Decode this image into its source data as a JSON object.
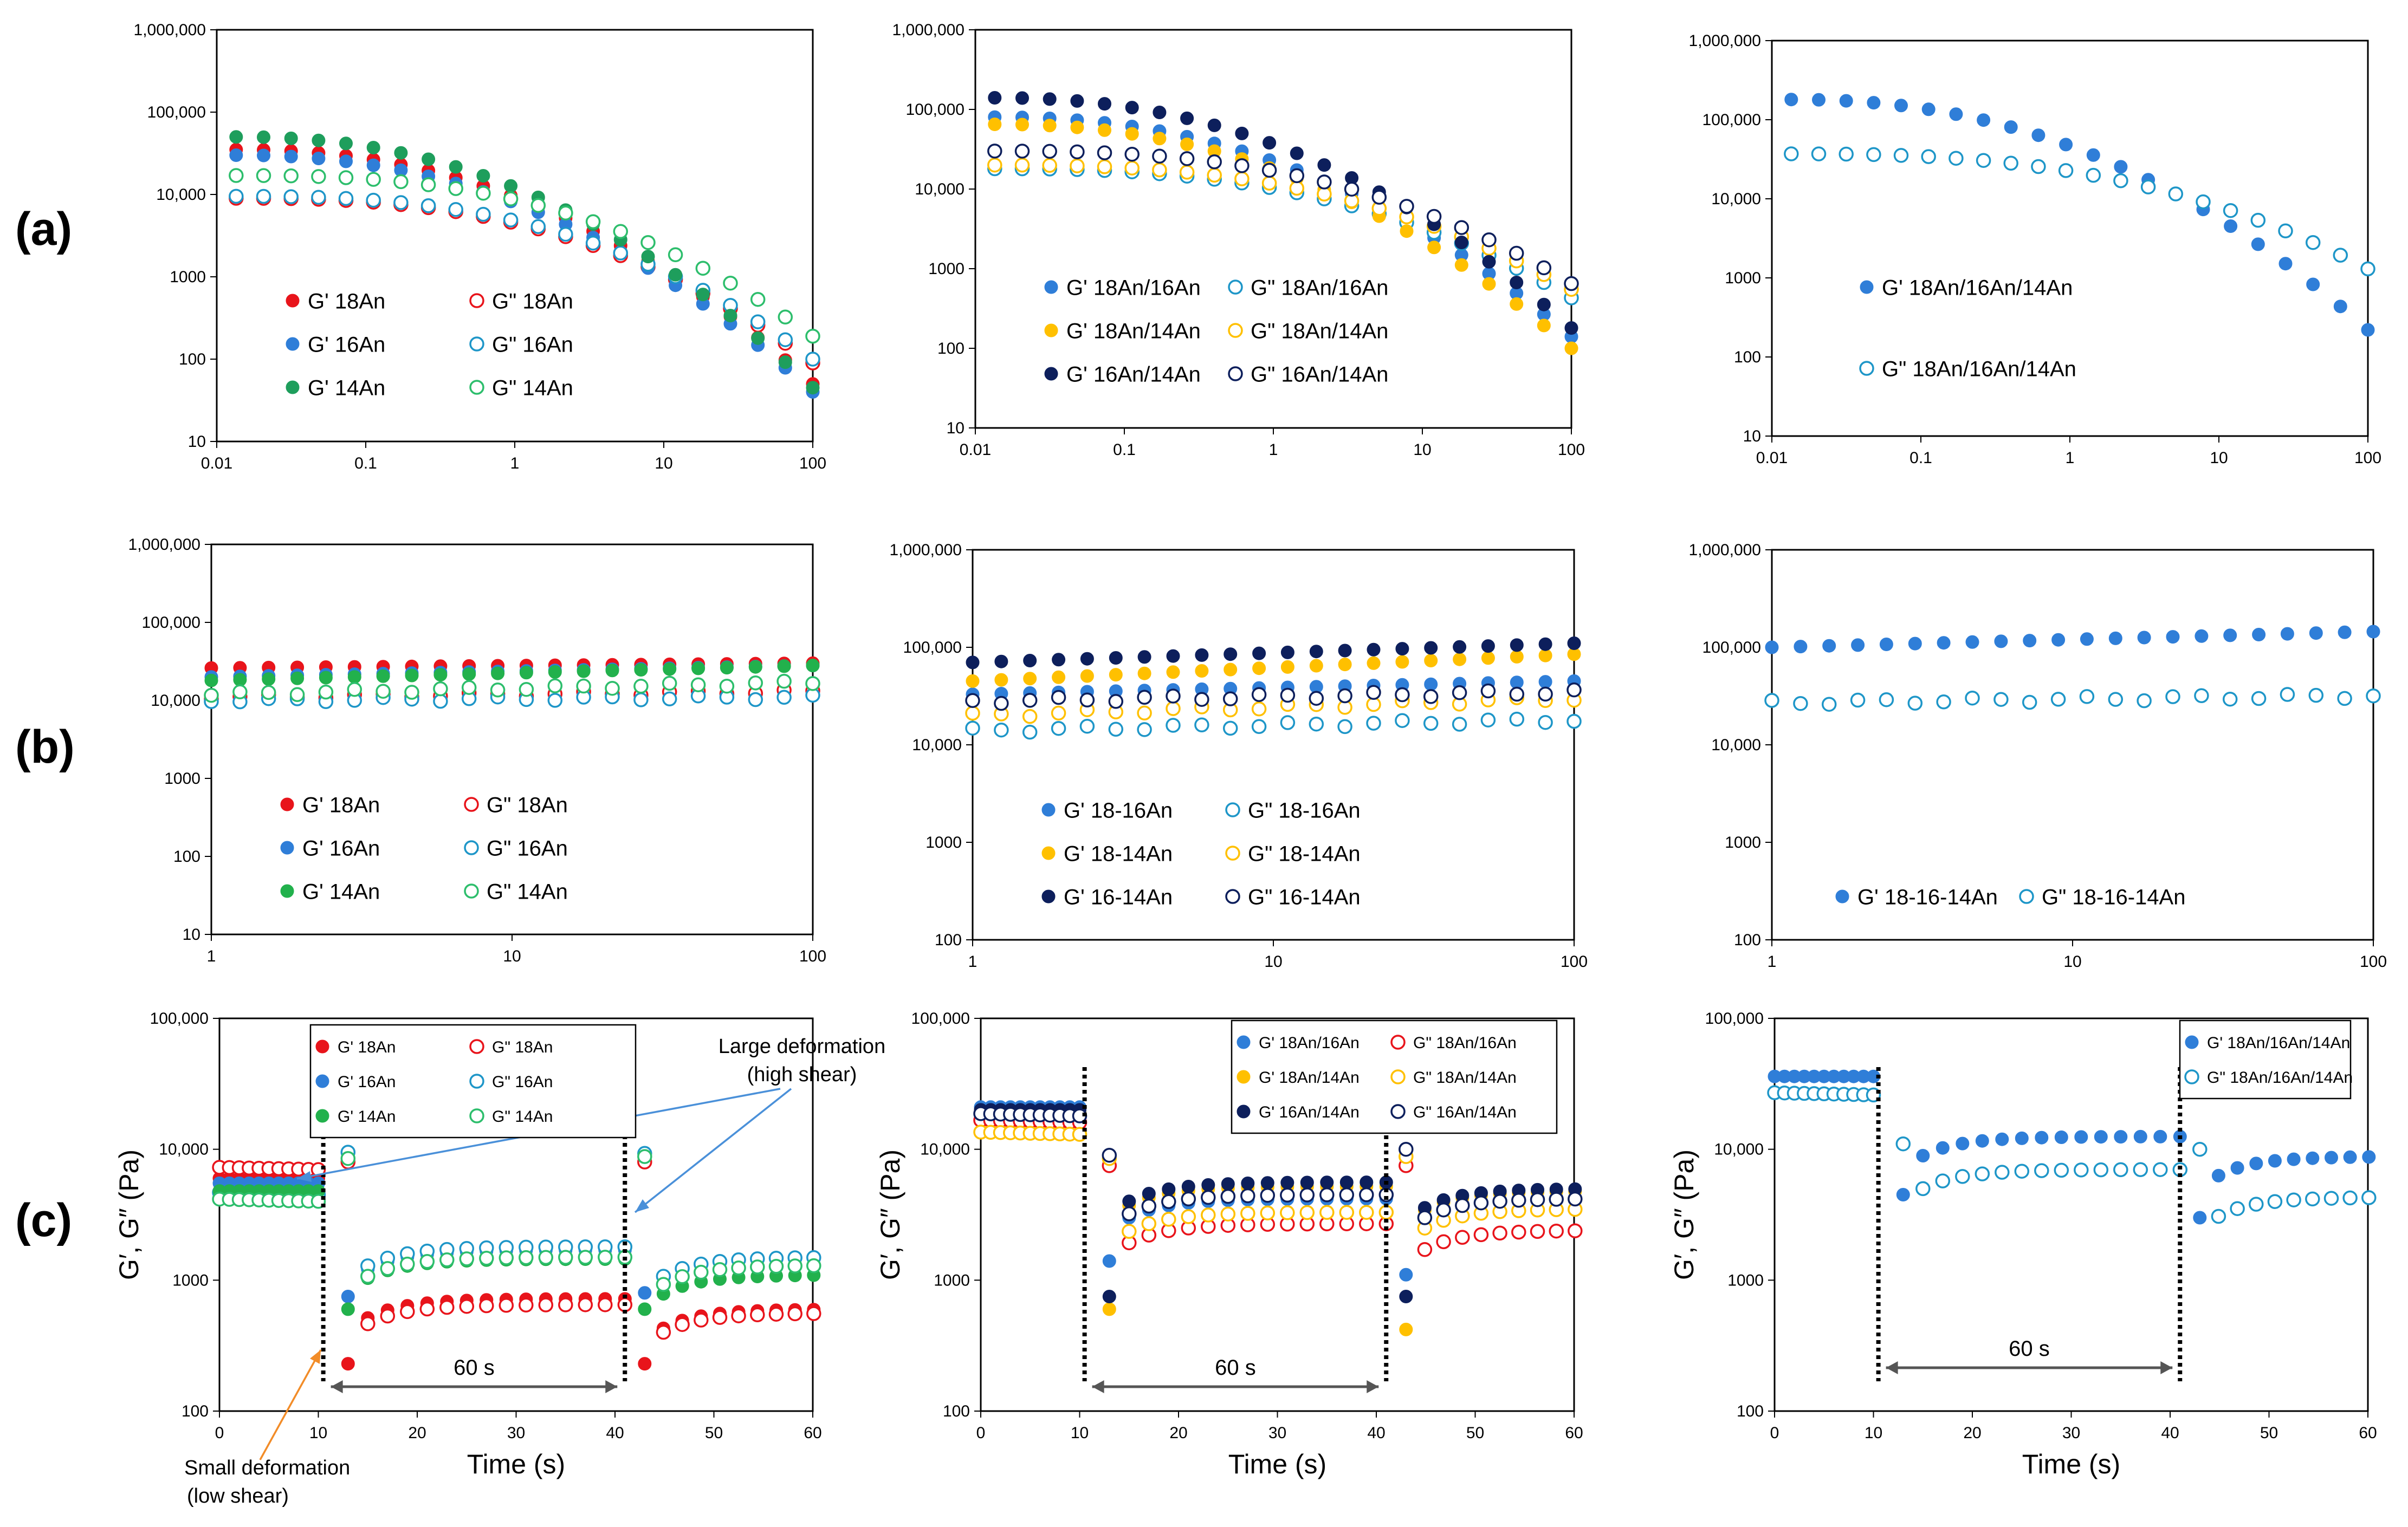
{
  "figure": {
    "row_labels": [
      "(a)",
      "(b)",
      "(c)"
    ],
    "colors": {
      "red": "#E8141B",
      "blue": "#2F7ED8",
      "green": "#1E9E5C",
      "green_bright": "#22B14C",
      "teal_open": "#1E96C8",
      "gold": "#FFC000",
      "navy": "#0D1F5C"
    },
    "annotations": {
      "large_deformation": [
        "Large deformation",
        "(high shear)"
      ],
      "small_deformation": [
        "Small deformation",
        "(low shear)"
      ],
      "interval": "60 s"
    }
  },
  "chart_data": [
    {
      "id": "a1",
      "type": "scatter",
      "xscale": "log",
      "yscale": "log",
      "xlim": [
        0.01,
        100
      ],
      "ylim": [
        10,
        1000000
      ],
      "xticks": [
        "0.01",
        "0.1",
        "1",
        "10",
        "100"
      ],
      "yticks": [
        "10",
        "100",
        "1000",
        "10,000",
        "100,000",
        "1,000,000"
      ],
      "xlabel": "",
      "ylabel": "",
      "legend_position": "lower-left",
      "legend_columns": 2,
      "series": [
        {
          "name": "G'  18An",
          "color": "#E8141B",
          "filled": true,
          "start": 35000,
          "end": 50
        },
        {
          "name": "G\"  18An",
          "color": "#E8141B",
          "filled": false,
          "start": 9000,
          "end": 90
        },
        {
          "name": "G'  16An",
          "color": "#2F7ED8",
          "filled": true,
          "start": 30000,
          "end": 40
        },
        {
          "name": "G\"  16An",
          "color": "#1E96C8",
          "filled": false,
          "start": 9500,
          "end": 100
        },
        {
          "name": "G'  14An",
          "color": "#1E9E5C",
          "filled": true,
          "start": 50000,
          "end": 45
        },
        {
          "name": "G\"  14An",
          "color": "#2DBE6C",
          "filled": false,
          "start": 17000,
          "end": 190
        }
      ]
    },
    {
      "id": "a2",
      "type": "scatter",
      "xscale": "log",
      "yscale": "log",
      "xlim": [
        0.01,
        100
      ],
      "ylim": [
        10,
        1000000
      ],
      "xticks": [
        "0.01",
        "0.1",
        "1",
        "10",
        "100"
      ],
      "yticks": [
        "10",
        "100",
        "1000",
        "10,000",
        "100,000",
        "1,000,000"
      ],
      "xlabel": "",
      "ylabel": "",
      "legend_position": "lower-left",
      "legend_columns": 2,
      "series": [
        {
          "name": "G'  18An/16An",
          "color": "#2F7ED8",
          "filled": true,
          "start": 80000,
          "end": 140
        },
        {
          "name": "G\"  18An/16An",
          "color": "#1E96C8",
          "filled": false,
          "start": 18000,
          "end": 430
        },
        {
          "name": "G'  18An/14An",
          "color": "#FFC000",
          "filled": true,
          "start": 65000,
          "end": 100
        },
        {
          "name": "G\"  18An/14An",
          "color": "#FFC000",
          "filled": false,
          "start": 20000,
          "end": 550
        },
        {
          "name": "G'  16An/14An",
          "color": "#0D1F5C",
          "filled": true,
          "start": 140000,
          "end": 180
        },
        {
          "name": "G\"  16An/14An",
          "color": "#0D1F5C",
          "filled": false,
          "start": 30000,
          "end": 650
        }
      ]
    },
    {
      "id": "a3",
      "type": "scatter",
      "xscale": "log",
      "yscale": "log",
      "xlim": [
        0.01,
        100
      ],
      "ylim": [
        10,
        1000000
      ],
      "xticks": [
        "0.01",
        "0.1",
        "1",
        "10",
        "100"
      ],
      "yticks": [
        "10",
        "100",
        "1000",
        "10,000",
        "100,000",
        "1,000,000"
      ],
      "xlabel": "",
      "ylabel": "",
      "legend_position": "center-left",
      "legend_columns": 1,
      "series": [
        {
          "name": "G'  18An/16An/14An",
          "color": "#2F7ED8",
          "filled": true,
          "start": 180000,
          "end": 220
        },
        {
          "name": "G\"  18An/16An/14An",
          "color": "#1E96C8",
          "filled": false,
          "start": 37000,
          "end": 1300
        }
      ]
    },
    {
      "id": "b1",
      "type": "scatter",
      "xscale": "log",
      "yscale": "log",
      "xlim": [
        1,
        100
      ],
      "ylim": [
        10,
        1000000
      ],
      "xticks": [
        "1",
        "10",
        "100"
      ],
      "yticks": [
        "10",
        "100",
        "1000",
        "10,000",
        "100,000",
        "1,000,000"
      ],
      "xlabel": "",
      "ylabel": "",
      "legend_position": "lower-left",
      "legend_columns": 2,
      "series": [
        {
          "name": "G'  18An",
          "color": "#E8141B",
          "filled": true,
          "start": 26000,
          "end": 30000
        },
        {
          "name": "G\"  18An",
          "color": "#E8141B",
          "filled": false,
          "start": 11000,
          "end": 13000
        },
        {
          "name": "G'  16An",
          "color": "#2F7ED8",
          "filled": true,
          "start": 20000,
          "end": 28000
        },
        {
          "name": "G\"  16An",
          "color": "#1E96C8",
          "filled": false,
          "start": 10000,
          "end": 11000
        },
        {
          "name": "G'  14An",
          "color": "#22B14C",
          "filled": true,
          "start": 18000,
          "end": 28000
        },
        {
          "name": "G\"  14An",
          "color": "#2DBE6C",
          "filled": false,
          "start": 12000,
          "end": 17000
        }
      ]
    },
    {
      "id": "b2",
      "type": "scatter",
      "xscale": "log",
      "yscale": "log",
      "xlim": [
        1,
        100
      ],
      "ylim": [
        100,
        1000000
      ],
      "xticks": [
        "1",
        "10",
        "100"
      ],
      "yticks": [
        "100",
        "1000",
        "10,000",
        "100,000",
        "1,000,000"
      ],
      "xlabel": "",
      "ylabel": "",
      "legend_position": "lower-left",
      "legend_columns": 2,
      "series": [
        {
          "name": "G'  18-16An",
          "color": "#2F7ED8",
          "filled": true,
          "start": 33000,
          "end": 45000
        },
        {
          "name": "G\"  18-16An",
          "color": "#1E96C8",
          "filled": false,
          "start": 14000,
          "end": 18000
        },
        {
          "name": "G'  18-14An",
          "color": "#FFC000",
          "filled": true,
          "start": 45000,
          "end": 85000
        },
        {
          "name": "G\"  18-14An",
          "color": "#FFC000",
          "filled": false,
          "start": 20000,
          "end": 30000
        },
        {
          "name": "G'  16-14An",
          "color": "#0D1F5C",
          "filled": true,
          "start": 70000,
          "end": 110000
        },
        {
          "name": "G\"  16-14An",
          "color": "#0D1F5C",
          "filled": false,
          "start": 28000,
          "end": 35000
        }
      ]
    },
    {
      "id": "b3",
      "type": "scatter",
      "xscale": "log",
      "yscale": "log",
      "xlim": [
        1,
        100
      ],
      "ylim": [
        100,
        1000000
      ],
      "xticks": [
        "1",
        "10",
        "100"
      ],
      "yticks": [
        "100",
        "1000",
        "10,000",
        "100,000",
        "1,000,000"
      ],
      "xlabel": "",
      "ylabel": "",
      "legend_position": "lower-left",
      "legend_columns": 2,
      "series": [
        {
          "name": "G'  18-16-14An",
          "color": "#2F7ED8",
          "filled": true,
          "start": 100000,
          "end": 145000
        },
        {
          "name": "G\"  18-16-14An",
          "color": "#1E96C8",
          "filled": false,
          "start": 27000,
          "end": 32000
        }
      ]
    },
    {
      "id": "c1",
      "type": "scatter",
      "xscale": "linear",
      "yscale": "log",
      "xlim": [
        0,
        60
      ],
      "ylim": [
        100,
        100000
      ],
      "xticks": [
        "0",
        "10",
        "20",
        "30",
        "40",
        "50",
        "60"
      ],
      "yticks": [
        "100",
        "1000",
        "10,000",
        "100,000"
      ],
      "xlabel": "Time (s)",
      "ylabel": "G′, G″ (Pa)",
      "legend_position": "top-left",
      "legend_columns": 2,
      "dividers_s": [
        10.5,
        41
      ],
      "series": [
        {
          "name": "G'  18An",
          "color": "#E8141B",
          "filled": true,
          "p1": 6000,
          "drop": 230,
          "p2": 720,
          "drop2": 230,
          "p3": 600
        },
        {
          "name": "G\"  18An",
          "color": "#E8141B",
          "filled": false,
          "p1": 7000,
          "drop": 8000,
          "p2": 650,
          "drop2": 8000,
          "p3": 560
        },
        {
          "name": "G'  16An",
          "color": "#2F7ED8",
          "filled": true,
          "p1": 5500,
          "drop": 750,
          "p2": 1700,
          "drop2": 800,
          "p3": 1500
        },
        {
          "name": "G\"  16An",
          "color": "#1E96C8",
          "filled": false,
          "p1": 4500,
          "drop": 9500,
          "p2": 1800,
          "drop2": 9300,
          "p3": 1500
        },
        {
          "name": "G'  14An",
          "color": "#22B14C",
          "filled": true,
          "p1": 4800,
          "drop": 600,
          "p2": 1450,
          "drop2": 600,
          "p3": 1100
        },
        {
          "name": "G\"  14An",
          "color": "#2DBE6C",
          "filled": false,
          "p1": 4000,
          "drop": 8500,
          "p2": 1500,
          "drop2": 8800,
          "p3": 1300
        }
      ]
    },
    {
      "id": "c2",
      "type": "scatter",
      "xscale": "linear",
      "yscale": "log",
      "xlim": [
        0,
        60
      ],
      "ylim": [
        100,
        100000
      ],
      "xticks": [
        "0",
        "10",
        "20",
        "30",
        "40",
        "50",
        "60"
      ],
      "yticks": [
        "100",
        "1000",
        "10,000",
        "100,000"
      ],
      "xlabel": "Time (s)",
      "ylabel": "G′, G″ (Pa)",
      "legend_position": "top-right",
      "legend_columns": 2,
      "dividers_s": [
        10.5,
        41
      ],
      "series": [
        {
          "name": "G'  18An/16An",
          "color": "#2F7ED8",
          "filled": true,
          "p1": 21000,
          "drop": 1400,
          "p2": 4200,
          "drop2": 1100,
          "p3": 4300
        },
        {
          "name": "G\"  18An/16An",
          "color": "#E8141B",
          "filled": false,
          "p1": 16000,
          "drop": 7500,
          "p2": 2700,
          "drop2": 7500,
          "p3": 2400
        },
        {
          "name": "G'  18An/14An",
          "color": "#FFC000",
          "filled": true,
          "p1": 19000,
          "drop": 600,
          "p2": 5200,
          "drop2": 420,
          "p3": 4800
        },
        {
          "name": "G\"  18An/14An",
          "color": "#FFC000",
          "filled": false,
          "p1": 13000,
          "drop": 8500,
          "p2": 3300,
          "drop2": 8800,
          "p3": 3500
        },
        {
          "name": "G'  16An/14An",
          "color": "#0D1F5C",
          "filled": true,
          "p1": 20000,
          "drop": 750,
          "p2": 5600,
          "drop2": 750,
          "p3": 5000
        },
        {
          "name": "G\"  16An/14An",
          "color": "#0D1F5C",
          "filled": false,
          "p1": 18000,
          "drop": 9000,
          "p2": 4500,
          "drop2": 10000,
          "p3": 4200
        }
      ]
    },
    {
      "id": "c3",
      "type": "scatter",
      "xscale": "linear",
      "yscale": "log",
      "xlim": [
        0,
        60
      ],
      "ylim": [
        100,
        100000
      ],
      "xticks": [
        "0",
        "10",
        "20",
        "30",
        "40",
        "50",
        "60"
      ],
      "yticks": [
        "100",
        "1000",
        "10,000",
        "100,000"
      ],
      "xlabel": "Time (s)",
      "ylabel": "G′, G″ (Pa)",
      "legend_position": "top-right",
      "legend_columns": 1,
      "dividers_s": [
        10.5,
        41
      ],
      "series": [
        {
          "name": "G'  18An/16An/14An",
          "color": "#2F7ED8",
          "filled": true,
          "p1": 36000,
          "drop": 4500,
          "p2": 12500,
          "drop2": 3000,
          "p3": 8800
        },
        {
          "name": "G\"  18An/16An/14An",
          "color": "#1E96C8",
          "filled": false,
          "p1": 26000,
          "drop": 11000,
          "p2": 7000,
          "drop2": 10000,
          "p3": 4300
        }
      ]
    }
  ]
}
